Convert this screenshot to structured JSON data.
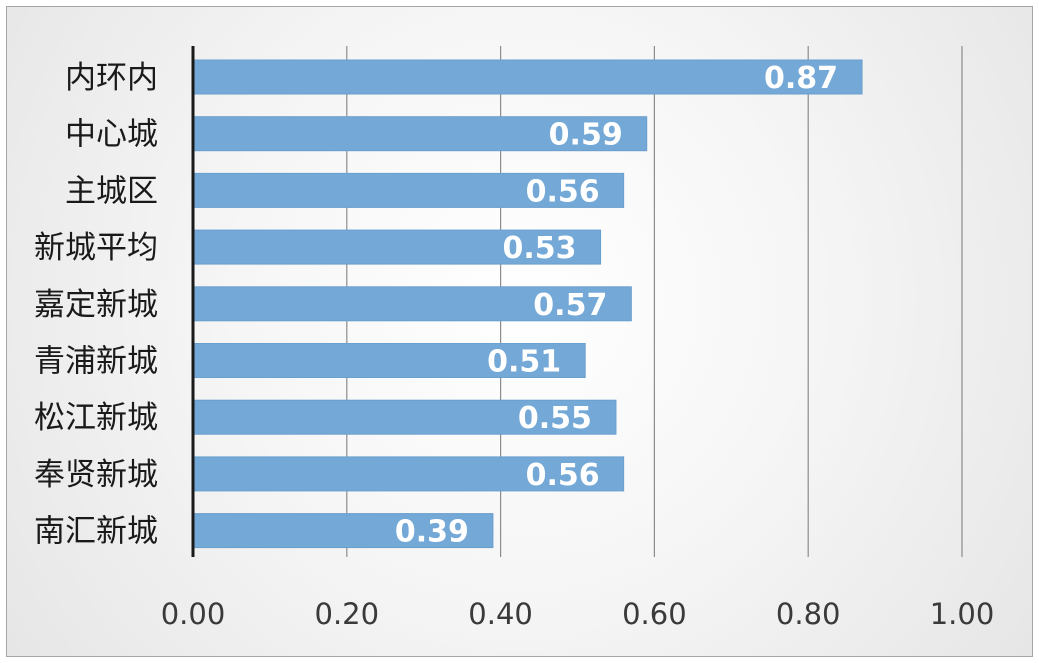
{
  "chart_data": {
    "type": "bar",
    "orientation": "horizontal",
    "title": "",
    "xlabel": "",
    "ylabel": "",
    "categories": [
      "内环内",
      "中心城",
      "主城区",
      "新城平均",
      "嘉定新城",
      "青浦新城",
      "松江新城",
      "奉贤新城",
      "南汇新城"
    ],
    "values": [
      0.87,
      0.59,
      0.56,
      0.53,
      0.57,
      0.51,
      0.55,
      0.56,
      0.39
    ],
    "data_labels": [
      "0.87",
      "0.59",
      "0.56",
      "0.53",
      "0.57",
      "0.51",
      "0.55",
      "0.56",
      "0.39"
    ],
    "xlim": [
      0,
      1.0
    ],
    "x_ticks": [
      0,
      0.2,
      0.4,
      0.6,
      0.8,
      1.0
    ],
    "x_tick_labels": [
      "0.00",
      "0.20",
      "0.40",
      "0.60",
      "0.80",
      "1.00"
    ],
    "grid": "vertical",
    "legend": "none",
    "colors": {
      "bar": "#74a8d6",
      "bar_edge": "#6a9fce",
      "gridline": "#8c8c8c",
      "axis": "#1a1a1a",
      "label_text": "#ffffff"
    }
  }
}
